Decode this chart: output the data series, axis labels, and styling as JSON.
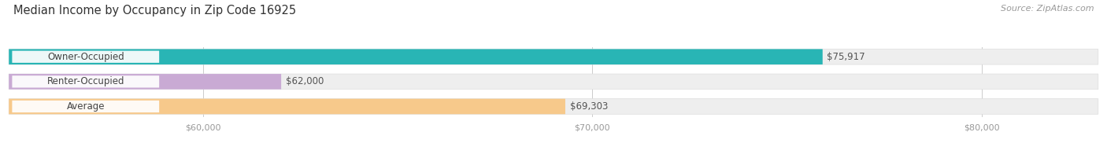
{
  "title": "Median Income by Occupancy in Zip Code 16925",
  "source": "Source: ZipAtlas.com",
  "categories": [
    "Owner-Occupied",
    "Renter-Occupied",
    "Average"
  ],
  "values": [
    75917,
    62000,
    69303
  ],
  "labels": [
    "$75,917",
    "$62,000",
    "$69,303"
  ],
  "bar_colors": [
    "#29b5b5",
    "#c9aad4",
    "#f7c98b"
  ],
  "bar_bg_color": "#eeeeee",
  "xlim_min": 55000,
  "xlim_max": 83000,
  "xticks": [
    60000,
    70000,
    80000
  ],
  "xtick_labels": [
    "$60,000",
    "$70,000",
    "$80,000"
  ],
  "title_fontsize": 10.5,
  "source_fontsize": 8,
  "label_fontsize": 8.5,
  "tick_fontsize": 8,
  "bar_height": 0.62,
  "background_color": "#ffffff",
  "grid_color": "#cccccc",
  "value_label_color": "#555555",
  "category_text_color": "#444444"
}
